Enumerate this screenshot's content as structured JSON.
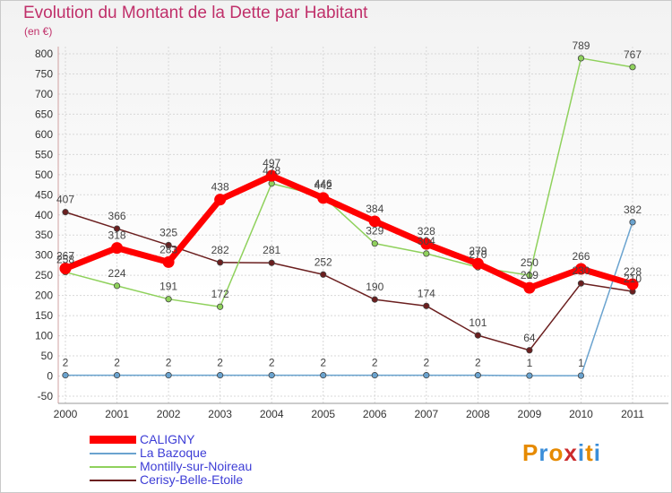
{
  "title": "Evolution du Montant de la Dette par Habitant",
  "unit": "(en €)",
  "logo": {
    "text": "Proxiti",
    "colors": [
      "#e68a00",
      "#3b8ed9",
      "#e68a00",
      "#cc2b2b",
      "#3b8ed9",
      "#e68a00",
      "#3b8ed9"
    ]
  },
  "chart_data": {
    "type": "line",
    "title": "Evolution du Montant de la Dette par Habitant",
    "ylabel": "(en €)",
    "xlabel": "",
    "x": [
      "2000",
      "2001",
      "2002",
      "2003",
      "2004",
      "2005",
      "2006",
      "2007",
      "2008",
      "2009",
      "2010",
      "2011"
    ],
    "ylim": [
      -50,
      800
    ],
    "yticks": [
      "-50",
      "0",
      "50",
      "100",
      "150",
      "200",
      "250",
      "300",
      "350",
      "400",
      "450",
      "500",
      "550",
      "600",
      "650",
      "700",
      "750",
      "800"
    ],
    "grid": true,
    "legend_position": "bottom-left",
    "series": [
      {
        "name": "CALIGNY",
        "color": "#ff0000",
        "values": [
          267,
          318,
          283,
          438,
          497,
          442,
          384,
          328,
          279,
          219,
          266,
          228
        ]
      },
      {
        "name": "La Bazoque",
        "color": "#6aa3cf",
        "values": [
          2,
          2,
          2,
          2,
          2,
          2,
          2,
          2,
          2,
          1,
          1,
          382
        ]
      },
      {
        "name": "Montilly-sur-Noireau",
        "color": "#8fd15c",
        "values": [
          258,
          224,
          191,
          172,
          478,
          446,
          329,
          304,
          270,
          250,
          789,
          767
        ]
      },
      {
        "name": "Cerisy-Belle-Etoile",
        "color": "#6b1f1f",
        "values": [
          407,
          366,
          325,
          282,
          281,
          252,
          190,
          174,
          101,
          64,
          230,
          210
        ]
      }
    ],
    "data_labels": [
      [
        "267",
        "318",
        "283",
        "438",
        "497",
        "442",
        "384",
        "328",
        "279",
        "219",
        "266",
        "228"
      ],
      [
        "2",
        "2",
        "2",
        "2",
        "2",
        "2",
        "2",
        "2",
        "2",
        "1",
        "1",
        "382"
      ],
      [
        "258",
        "224",
        "191",
        "172",
        "478",
        "446",
        "329",
        "304",
        "270",
        "250",
        "789",
        "767"
      ],
      [
        "407",
        "366",
        "325",
        "282",
        "281",
        "252",
        "190",
        "174",
        "101",
        "64",
        "230",
        "210"
      ]
    ]
  }
}
